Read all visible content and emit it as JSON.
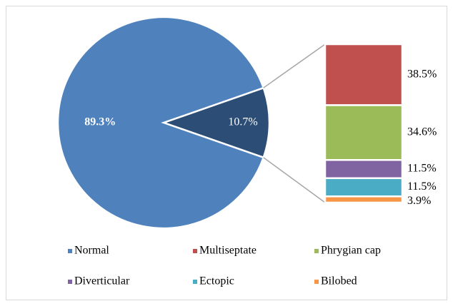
{
  "chart_data": {
    "type": "pie-of-bar",
    "categories": [
      "Normal",
      null
    ],
    "values": [
      89.3,
      10.7
    ],
    "value_labels": [
      "89.3%",
      "10.7%"
    ],
    "colors": [
      "#4f81bd",
      "#2c4d75"
    ],
    "bar": {
      "categories": [
        "Multiseptate",
        "Phrygian cap",
        "Diverticular",
        "Ectopic",
        "Bilobed"
      ],
      "values": [
        38.5,
        34.6,
        11.5,
        11.5,
        3.9
      ],
      "value_labels": [
        "38.5%",
        "34.6%",
        "11.5%",
        "11.5%",
        "3.9%"
      ],
      "colors": [
        "#c0504d",
        "#9bbb59",
        "#8064a2",
        "#4bacc6",
        "#f79646"
      ]
    },
    "legend": "bottom"
  }
}
